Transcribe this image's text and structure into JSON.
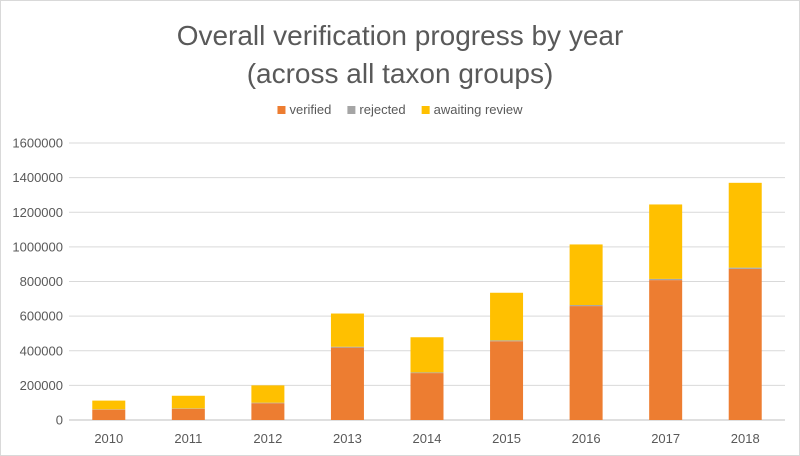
{
  "chart_data": {
    "type": "bar",
    "stacked": true,
    "title_lines": [
      "Overall verification progress by year",
      "(across all taxon groups)"
    ],
    "xlabel": "",
    "ylabel": "",
    "categories": [
      "2010",
      "2011",
      "2012",
      "2013",
      "2014",
      "2015",
      "2016",
      "2017",
      "2018"
    ],
    "series": [
      {
        "name": "verified",
        "color": "#ed7d31",
        "values": [
          60000,
          65000,
          97000,
          418000,
          271000,
          455000,
          658000,
          808000,
          873000
        ]
      },
      {
        "name": "rejected",
        "color": "#a5a5a5",
        "values": [
          2000,
          2000,
          3000,
          5000,
          4000,
          5000,
          6000,
          7000,
          7000
        ]
      },
      {
        "name": "awaiting review",
        "color": "#ffc000",
        "values": [
          50000,
          73000,
          100000,
          192000,
          203000,
          275000,
          350000,
          430000,
          490000
        ]
      }
    ],
    "ylim": [
      0,
      1600000
    ],
    "yticks": [
      0,
      200000,
      400000,
      600000,
      800000,
      1000000,
      1200000,
      1400000,
      1600000
    ],
    "ytick_labels": [
      "0",
      "200000",
      "400000",
      "600000",
      "800000",
      "1000000",
      "1200000",
      "1400000",
      "1600000"
    ],
    "grid": true,
    "legend_position": "top"
  }
}
